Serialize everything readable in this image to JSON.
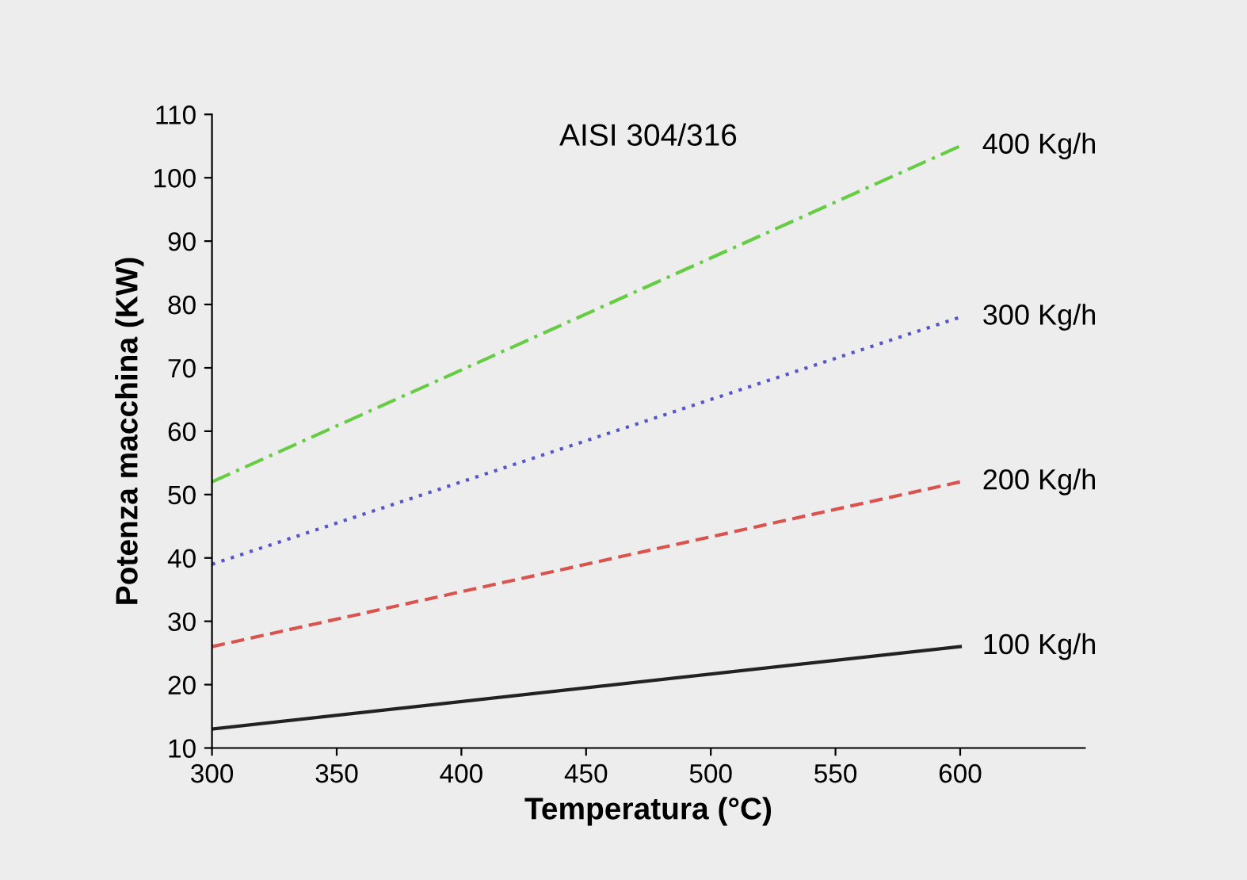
{
  "chart_data": {
    "type": "line",
    "title": "AISI 304/316",
    "xlabel": "Temperatura (°C)",
    "ylabel": "Potenza macchina (KW)",
    "x": [
      300,
      600
    ],
    "series": [
      {
        "name": "100 Kg/h",
        "color": "#222222",
        "line_style": "solid",
        "values": [
          13,
          26
        ]
      },
      {
        "name": "200 Kg/h",
        "color": "#d9534f",
        "line_style": "dashed",
        "values": [
          26,
          52
        ]
      },
      {
        "name": "300 Kg/h",
        "color": "#5555cc",
        "line_style": "dotted",
        "values": [
          39,
          78
        ]
      },
      {
        "name": "400 Kg/h",
        "color": "#66cc44",
        "line_style": "dashdot",
        "values": [
          52,
          105
        ]
      }
    ],
    "xlim": [
      300,
      650
    ],
    "xticks": [
      300,
      350,
      400,
      450,
      500,
      550,
      600
    ],
    "ylim": [
      10,
      110
    ],
    "yticks": [
      10,
      20,
      30,
      40,
      50,
      60,
      70,
      80,
      90,
      100,
      110
    ],
    "grid": false,
    "legend": false
  }
}
